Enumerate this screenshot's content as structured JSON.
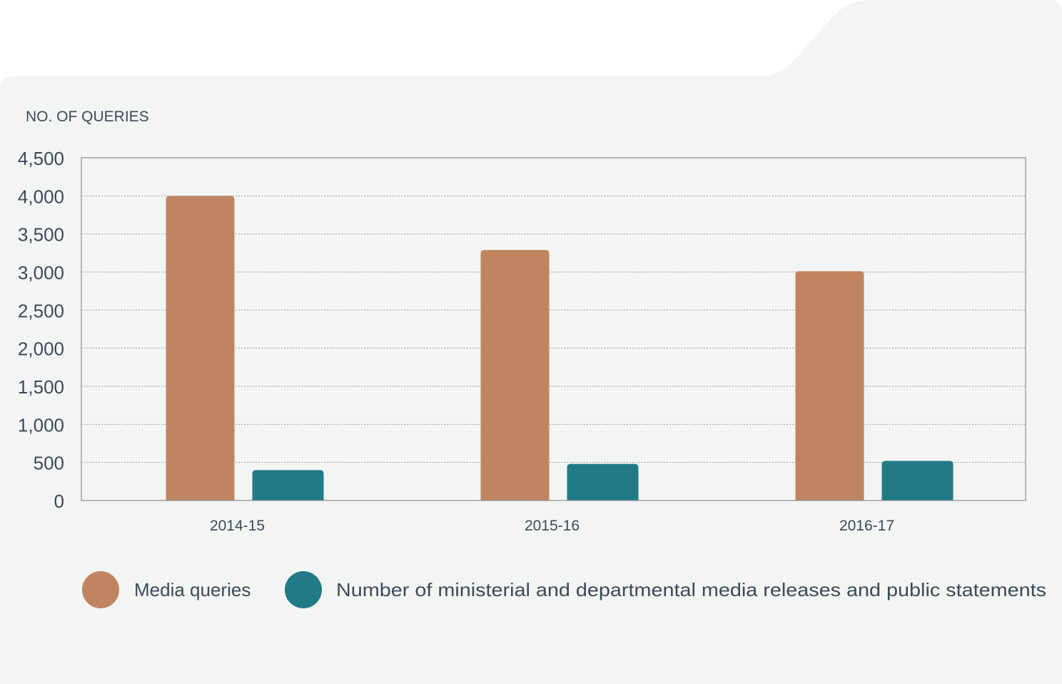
{
  "chart_data": {
    "type": "bar",
    "ylabel": "NO. OF QUERIES",
    "categories": [
      "2014-15",
      "2015-16",
      "2016-17"
    ],
    "series": [
      {
        "name": "Media queries",
        "values": [
          4000,
          3290,
          3010
        ],
        "color": "#c08560"
      },
      {
        "name": "Number of ministerial and departmental media releases and public statements",
        "values": [
          400,
          480,
          520
        ],
        "color": "#217b86"
      }
    ],
    "ylim": [
      0,
      4500
    ],
    "yticks": [
      "0",
      "500",
      "1,000",
      "1,500",
      "2,000",
      "2,500",
      "3,000",
      "3,500",
      "4,000",
      "4,500"
    ],
    "grid": true,
    "legend_position": "bottom"
  },
  "colors": {
    "panel": "#f3f5f4",
    "text": "#3c4a57",
    "grid": "#9a9a9a"
  }
}
